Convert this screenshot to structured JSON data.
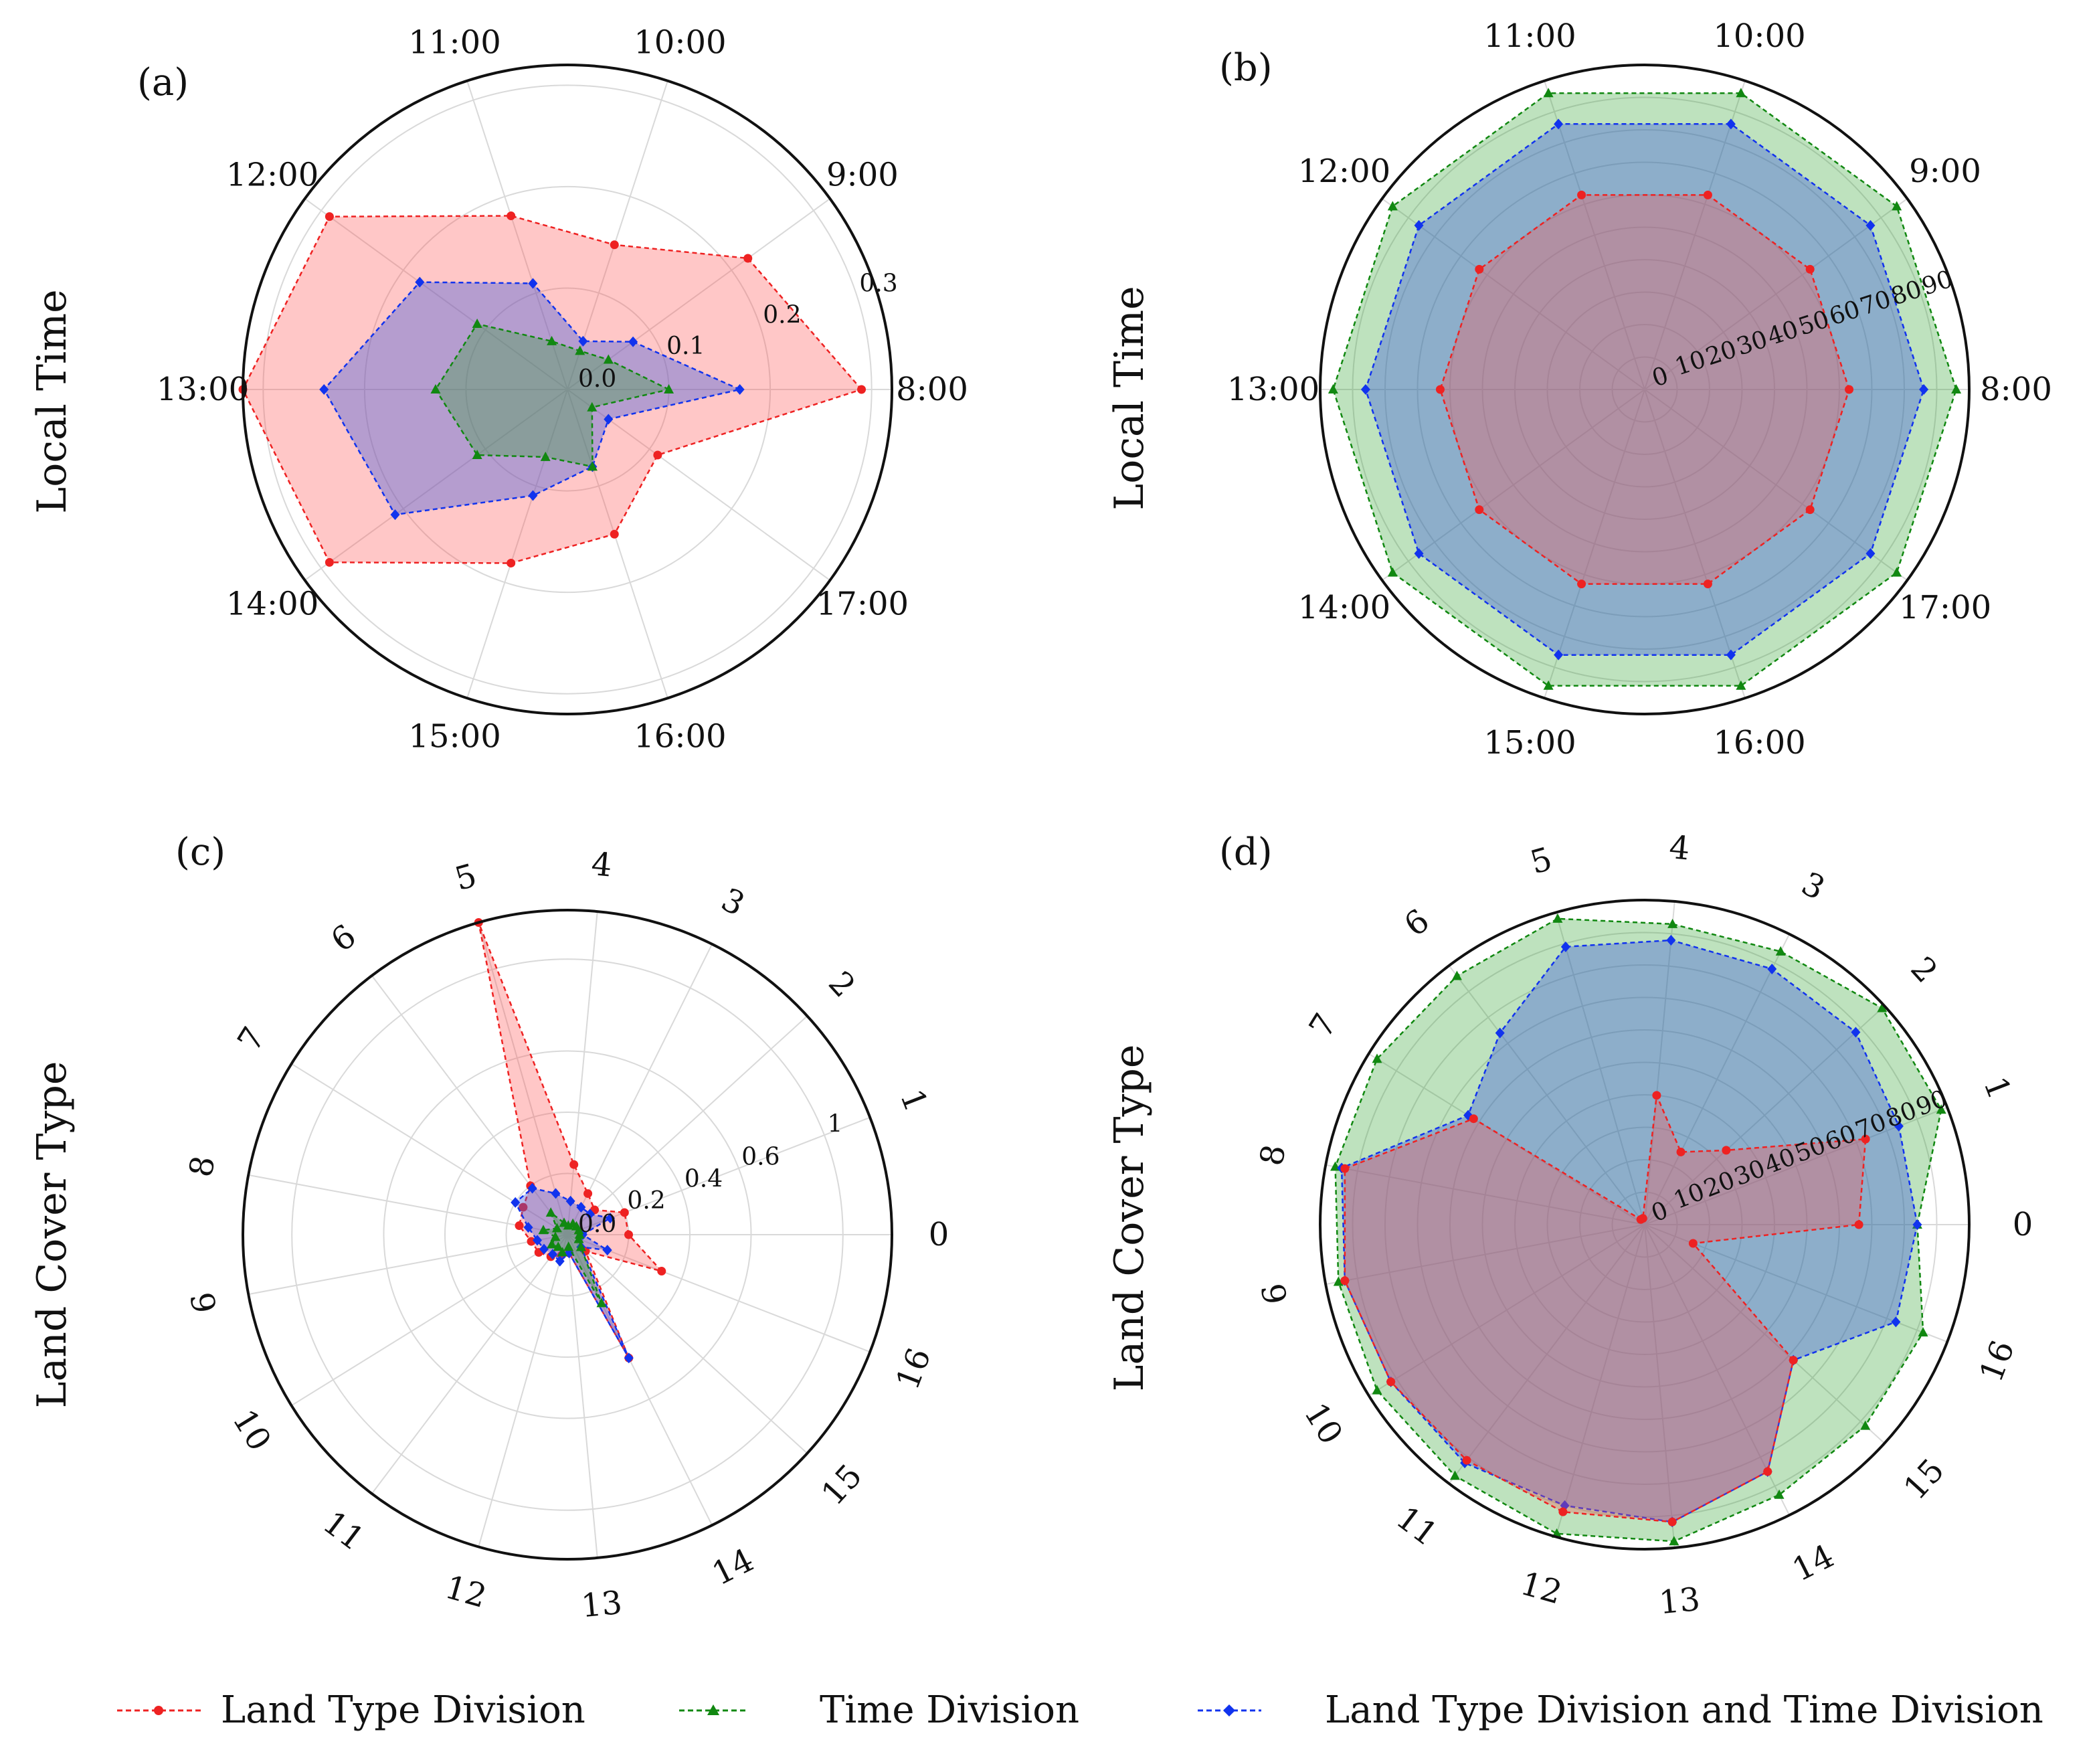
{
  "legend": [
    {
      "label": "Land Type Division",
      "color": "#ee2222",
      "fill": "#ff9e9e",
      "marker": "circle"
    },
    {
      "label": "Time Division",
      "color": "#118811",
      "fill": "#66bb66",
      "marker": "triangle"
    },
    {
      "label": "Land Type Division and Time Division",
      "color": "#1133ee",
      "fill": "#5577dd",
      "marker": "diamond"
    }
  ],
  "chart_data": [
    {
      "panel": "(a)",
      "type": "radar",
      "ylabel": "Local Time",
      "categories": [
        "8:00",
        "9:00",
        "10:00",
        "11:00",
        "12:00",
        "13:00",
        "14:00",
        "15:00",
        "16:00",
        "17:00"
      ],
      "rlim": [
        0,
        0.32
      ],
      "rticks": [
        "0.0",
        "0.1",
        "0.2",
        "0.3"
      ],
      "rtick_values": [
        0,
        0.1,
        0.2,
        0.3
      ],
      "series": [
        {
          "name": "Land Type Division",
          "values": [
            0.29,
            0.22,
            0.15,
            0.18,
            0.29,
            0.32,
            0.29,
            0.18,
            0.15,
            0.11
          ]
        },
        {
          "name": "Time Division",
          "values": [
            0.1,
            0.05,
            0.04,
            0.05,
            0.11,
            0.13,
            0.11,
            0.07,
            0.08,
            0.03
          ]
        },
        {
          "name": "Land Type Division and Time Division",
          "values": [
            0.17,
            0.08,
            0.05,
            0.11,
            0.18,
            0.24,
            0.21,
            0.11,
            0.08,
            0.05
          ]
        }
      ]
    },
    {
      "panel": "(b)",
      "type": "radar",
      "ylabel": "Local Time",
      "categories": [
        "8:00",
        "9:00",
        "10:00",
        "11:00",
        "12:00",
        "13:00",
        "14:00",
        "15:00",
        "16:00",
        "17:00"
      ],
      "rlim": [
        0,
        100
      ],
      "rticks": [
        "0",
        "10",
        "20",
        "30",
        "40",
        "50",
        "60",
        "70",
        "80",
        "90"
      ],
      "rtick_values": [
        0,
        10,
        20,
        30,
        40,
        50,
        60,
        70,
        80,
        90
      ],
      "series": [
        {
          "name": "Land Type Division",
          "values": [
            63,
            63,
            63,
            63,
            63,
            63,
            63,
            63,
            63,
            63
          ]
        },
        {
          "name": "Time Division",
          "values": [
            96,
            96,
            96,
            96,
            96,
            96,
            96,
            96,
            96,
            96
          ]
        },
        {
          "name": "Land Type Division and Time Division",
          "values": [
            86,
            86,
            86,
            86,
            86,
            86,
            86,
            86,
            86,
            86
          ]
        }
      ]
    },
    {
      "panel": "(c)",
      "type": "radar",
      "ylabel": "Land Cover Type",
      "categories": [
        "0",
        "1",
        "2",
        "3",
        "4",
        "5",
        "6",
        "7",
        "8",
        "9",
        "10",
        "11",
        "12",
        "13",
        "14",
        "15",
        "16"
      ],
      "rlim": [
        0,
        1.06
      ],
      "rticks": [
        "0.0",
        "0.2",
        "0.4",
        "0.6",
        "1"
      ],
      "rtick_values": [
        0,
        0.2,
        0.4,
        0.6,
        0.9
      ],
      "series": [
        {
          "name": "Land Type Division",
          "values": [
            0.2,
            0.2,
            0.12,
            0.15,
            0.23,
            1.06,
            0.2,
            0.17,
            0.16,
            0.12,
            0.11,
            0.09,
            0.07,
            0.06,
            0.45,
            0.08,
            0.33
          ]
        },
        {
          "name": "Time Division",
          "values": [
            0.04,
            0.04,
            0.04,
            0.04,
            0.03,
            0.04,
            0.09,
            0.04,
            0.08,
            0.04,
            0.06,
            0.05,
            0.06,
            0.04,
            0.25,
            0.06,
            0.04
          ]
        },
        {
          "name": "Land Type Division and Time Division",
          "values": [
            0.05,
            0.15,
            0.1,
            0.1,
            0.11,
            0.14,
            0.19,
            0.2,
            0.13,
            0.1,
            0.09,
            0.08,
            0.09,
            0.06,
            0.45,
            0.06,
            0.14
          ]
        }
      ]
    },
    {
      "panel": "(d)",
      "type": "radar",
      "ylabel": "Land Cover Type",
      "categories": [
        "0",
        "1",
        "2",
        "3",
        "4",
        "5",
        "6",
        "7",
        "8",
        "9",
        "10",
        "11",
        "12",
        "13",
        "14",
        "15",
        "16"
      ],
      "rlim": [
        0,
        100
      ],
      "rticks": [
        "0",
        "10",
        "20",
        "30",
        "40",
        "50",
        "60",
        "70",
        "80",
        "90"
      ],
      "rtick_values": [
        0,
        10,
        20,
        30,
        40,
        50,
        60,
        70,
        80,
        90
      ],
      "series": [
        {
          "name": "Land Type Division",
          "values": [
            66,
            73,
            34,
            25,
            40,
            2,
            2,
            62,
            94,
            94,
            92,
            91,
            92,
            92,
            85,
            62,
            16
          ]
        },
        {
          "name": "Time Division",
          "values": [
            84,
            98,
            99,
            94,
            93,
            98,
            96,
            97,
            97,
            96,
            97,
            97,
            99,
            98,
            93,
            92,
            92
          ]
        },
        {
          "name": "Land Type Division and Time Division",
          "values": [
            84,
            84,
            88,
            88,
            88,
            89,
            74,
            64,
            95,
            94,
            92,
            92,
            90,
            92,
            85,
            62,
            83
          ]
        }
      ]
    }
  ]
}
